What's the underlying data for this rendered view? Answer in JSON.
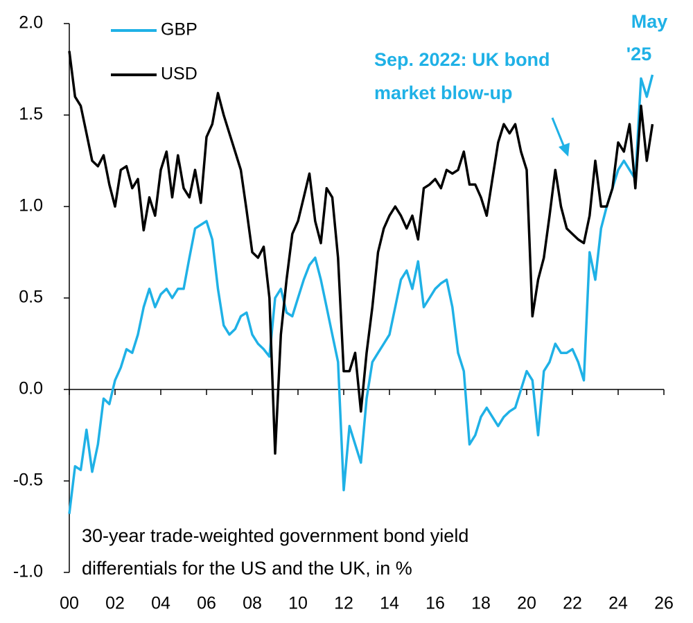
{
  "chart_data": {
    "type": "line",
    "x": [
      2000,
      2000.25,
      2000.5,
      2000.75,
      2001,
      2001.25,
      2001.5,
      2001.75,
      2002,
      2002.25,
      2002.5,
      2002.75,
      2003,
      2003.25,
      2003.5,
      2003.75,
      2004,
      2004.25,
      2004.5,
      2004.75,
      2005,
      2005.25,
      2005.5,
      2005.75,
      2006,
      2006.25,
      2006.5,
      2006.75,
      2007,
      2007.25,
      2007.5,
      2007.75,
      2008,
      2008.25,
      2008.5,
      2008.75,
      2009,
      2009.25,
      2009.5,
      2009.75,
      2010,
      2010.25,
      2010.5,
      2010.75,
      2011,
      2011.25,
      2011.5,
      2011.75,
      2012,
      2012.25,
      2012.5,
      2012.75,
      2013,
      2013.25,
      2013.5,
      2013.75,
      2014,
      2014.25,
      2014.5,
      2014.75,
      2015,
      2015.25,
      2015.5,
      2015.75,
      2016,
      2016.25,
      2016.5,
      2016.75,
      2017,
      2017.25,
      2017.5,
      2017.75,
      2018,
      2018.25,
      2018.5,
      2018.75,
      2019,
      2019.25,
      2019.5,
      2019.75,
      2020,
      2020.25,
      2020.5,
      2020.75,
      2021,
      2021.25,
      2021.5,
      2021.75,
      2022,
      2022.25,
      2022.5,
      2022.75,
      2023,
      2023.25,
      2023.5,
      2023.75,
      2024,
      2024.25,
      2024.5,
      2024.75,
      2025,
      2025.25,
      2025.5
    ],
    "series": [
      {
        "name": "GBP",
        "color": "#1fb1e6",
        "values": [
          -0.68,
          -0.42,
          -0.44,
          -0.22,
          -0.45,
          -0.3,
          -0.05,
          -0.08,
          0.05,
          0.12,
          0.22,
          0.2,
          0.3,
          0.45,
          0.55,
          0.45,
          0.52,
          0.55,
          0.5,
          0.55,
          0.55,
          0.72,
          0.88,
          0.9,
          0.92,
          0.82,
          0.55,
          0.35,
          0.3,
          0.33,
          0.4,
          0.42,
          0.3,
          0.25,
          0.22,
          0.18,
          0.5,
          0.55,
          0.42,
          0.4,
          0.5,
          0.6,
          0.68,
          0.72,
          0.6,
          0.45,
          0.3,
          0.15,
          -0.55,
          -0.2,
          -0.3,
          -0.4,
          -0.05,
          0.15,
          0.2,
          0.25,
          0.3,
          0.45,
          0.6,
          0.65,
          0.55,
          0.7,
          0.45,
          0.5,
          0.55,
          0.58,
          0.6,
          0.45,
          0.2,
          0.1,
          -0.3,
          -0.25,
          -0.15,
          -0.1,
          -0.15,
          -0.2,
          -0.15,
          -0.12,
          -0.1,
          0.0,
          0.1,
          0.05,
          -0.25,
          0.1,
          0.15,
          0.25,
          0.2,
          0.2,
          0.22,
          0.15,
          0.05,
          0.75,
          0.6,
          0.88,
          1.0,
          1.1,
          1.2,
          1.25,
          1.2,
          1.15,
          1.7,
          1.6,
          1.72
        ]
      },
      {
        "name": "USD",
        "color": "#000000",
        "values": [
          1.85,
          1.6,
          1.55,
          1.4,
          1.25,
          1.22,
          1.28,
          1.12,
          1.0,
          1.2,
          1.22,
          1.1,
          1.15,
          0.87,
          1.05,
          0.95,
          1.2,
          1.3,
          1.05,
          1.28,
          1.1,
          1.05,
          1.2,
          1.02,
          1.38,
          1.45,
          1.62,
          1.5,
          1.4,
          1.3,
          1.2,
          0.98,
          0.75,
          0.72,
          0.78,
          0.5,
          -0.35,
          0.3,
          0.6,
          0.85,
          0.92,
          1.05,
          1.18,
          0.92,
          0.8,
          1.1,
          1.05,
          0.72,
          0.1,
          0.1,
          0.2,
          -0.12,
          0.2,
          0.45,
          0.75,
          0.88,
          0.95,
          1.0,
          0.95,
          0.88,
          0.95,
          0.82,
          1.1,
          1.12,
          1.15,
          1.1,
          1.2,
          1.18,
          1.2,
          1.3,
          1.12,
          1.12,
          1.05,
          0.95,
          1.15,
          1.35,
          1.45,
          1.4,
          1.45,
          1.3,
          1.2,
          0.4,
          0.6,
          0.72,
          0.95,
          1.2,
          1.0,
          0.88,
          0.85,
          0.82,
          0.8,
          0.95,
          1.25,
          1.0,
          1.0,
          1.1,
          1.35,
          1.3,
          1.45,
          1.1,
          1.55,
          1.25,
          1.45
        ]
      }
    ],
    "xlim": [
      2000,
      2026
    ],
    "xticks": [
      {
        "value": 2000,
        "label": "00"
      },
      {
        "value": 2002,
        "label": "02"
      },
      {
        "value": 2004,
        "label": "04"
      },
      {
        "value": 2006,
        "label": "06"
      },
      {
        "value": 2008,
        "label": "08"
      },
      {
        "value": 2010,
        "label": "10"
      },
      {
        "value": 2012,
        "label": "12"
      },
      {
        "value": 2014,
        "label": "14"
      },
      {
        "value": 2016,
        "label": "16"
      },
      {
        "value": 2018,
        "label": "18"
      },
      {
        "value": 2020,
        "label": "20"
      },
      {
        "value": 2022,
        "label": "22"
      },
      {
        "value": 2024,
        "label": "24"
      },
      {
        "value": 2026,
        "label": "26"
      }
    ],
    "ylim": [
      -1,
      2
    ],
    "yticks": [
      {
        "value": -1,
        "label": "-1.0"
      },
      {
        "value": -0.5,
        "label": "-0.5"
      },
      {
        "value": 0,
        "label": "0.0"
      },
      {
        "value": 0.5,
        "label": "0.5"
      },
      {
        "value": 1,
        "label": "1.0"
      },
      {
        "value": 1.5,
        "label": "1.5"
      },
      {
        "value": 2,
        "label": "2.0"
      }
    ],
    "grid": false,
    "legend": "upper left",
    "note": [
      "30-year trade-weighted government bond yield",
      "differentials for the US and the UK, in %"
    ],
    "annotations": [
      {
        "text": [
          "Sep. 2022: UK bond",
          "market blow-up"
        ]
      },
      {
        "text": [
          "May",
          "'25"
        ]
      }
    ]
  }
}
